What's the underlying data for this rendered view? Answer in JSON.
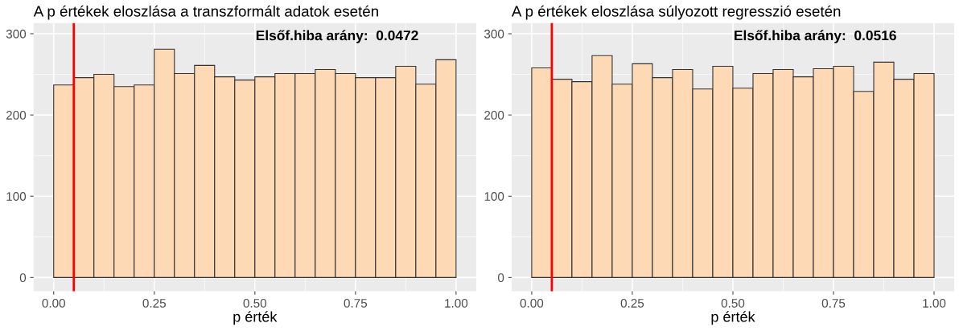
{
  "chart_data": [
    {
      "type": "histogram",
      "title": "A p értékek eloszlása a transzformált adatok esetén",
      "xlabel": "p érték",
      "bins": [
        0,
        0.05,
        0.1,
        0.15,
        0.2,
        0.25,
        0.3,
        0.35,
        0.4,
        0.45,
        0.5,
        0.55,
        0.6,
        0.65,
        0.7,
        0.75,
        0.8,
        0.85,
        0.9,
        0.95,
        1.0
      ],
      "values": [
        237,
        246,
        250,
        235,
        237,
        281,
        251,
        261,
        247,
        243,
        247,
        251,
        251,
        256,
        251,
        246,
        246,
        260,
        238,
        268
      ],
      "color": "#fdd9b5",
      "xlim": [
        -0.05,
        1.05
      ],
      "ylim": [
        -17,
        313
      ],
      "xticks": [
        {
          "value": 0,
          "label": "0.00"
        },
        {
          "value": 0.25,
          "label": "0.25"
        },
        {
          "value": 0.5,
          "label": "0.50"
        },
        {
          "value": 0.75,
          "label": "0.75"
        },
        {
          "value": 1,
          "label": "1.00"
        }
      ],
      "yticks": [
        0,
        100,
        200,
        300
      ],
      "grid": true,
      "ref_lines": [
        {
          "axis": "x",
          "value": 0.05,
          "color": "#ff0000"
        }
      ],
      "annotations": [
        "Elsőf.hiba arány:  0.0472"
      ]
    },
    {
      "type": "histogram",
      "title": "A p értékek eloszlása súlyozott regresszió esetén",
      "xlabel": "p érték",
      "bins": [
        0,
        0.05,
        0.1,
        0.15,
        0.2,
        0.25,
        0.3,
        0.35,
        0.4,
        0.45,
        0.5,
        0.55,
        0.6,
        0.65,
        0.7,
        0.75,
        0.8,
        0.85,
        0.9,
        0.95,
        1.0
      ],
      "values": [
        258,
        244,
        241,
        273,
        238,
        263,
        246,
        256,
        232,
        260,
        233,
        251,
        256,
        247,
        257,
        260,
        229,
        265,
        244,
        251
      ],
      "color": "#fdd9b5",
      "xlim": [
        -0.05,
        1.05
      ],
      "ylim": [
        -17,
        313
      ],
      "xticks": [
        {
          "value": 0,
          "label": "0.00"
        },
        {
          "value": 0.25,
          "label": "0.25"
        },
        {
          "value": 0.5,
          "label": "0.50"
        },
        {
          "value": 0.75,
          "label": "0.75"
        },
        {
          "value": 1,
          "label": "1.00"
        }
      ],
      "yticks": [
        0,
        100,
        200,
        300
      ],
      "grid": true,
      "ref_lines": [
        {
          "axis": "x",
          "value": 0.05,
          "color": "#ff0000"
        }
      ],
      "annotations": [
        "Elsőf.hiba arány:  0.0516"
      ]
    }
  ]
}
